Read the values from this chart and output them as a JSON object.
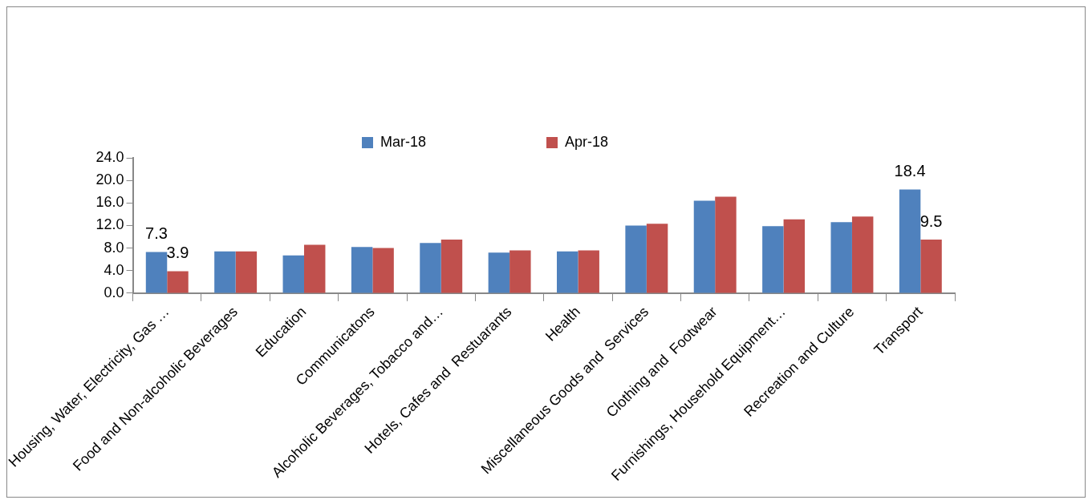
{
  "chart_data": {
    "type": "bar",
    "categories": [
      "Housing, Water, Electricity, Gas …",
      "Food and Non-alcoholic Beverages",
      "Education",
      "Communicatons",
      "Alcoholic Beverages, Tobacco and…",
      "Hotels, Cafes and  Restuarants",
      "Health",
      "Miscellaneous Goods and  Services",
      "Clothing and  Footwear",
      "Furnishings, Household Equipment…",
      "Recreation and Culture",
      "Transport"
    ],
    "series": [
      {
        "name": "Mar-18",
        "color": "#4f81bd",
        "values": [
          7.3,
          7.4,
          6.7,
          8.2,
          8.9,
          7.2,
          7.4,
          12.0,
          16.4,
          11.9,
          12.6,
          18.4
        ],
        "value_labels": [
          "7.3",
          null,
          null,
          null,
          null,
          null,
          null,
          null,
          null,
          null,
          null,
          "18.4"
        ]
      },
      {
        "name": "Apr-18",
        "color": "#c0504d",
        "values": [
          3.9,
          7.4,
          8.6,
          8.0,
          9.5,
          7.6,
          7.6,
          12.3,
          17.1,
          13.1,
          13.6,
          9.5
        ],
        "value_labels": [
          "3.9",
          null,
          null,
          null,
          null,
          null,
          null,
          null,
          null,
          null,
          null,
          "9.5"
        ]
      }
    ],
    "ylim": [
      0,
      24
    ],
    "yticks": [
      {
        "value": 0,
        "label": "0.0"
      },
      {
        "value": 4,
        "label": "4.0"
      },
      {
        "value": 8,
        "label": "8.0"
      },
      {
        "value": 12,
        "label": "12.0"
      },
      {
        "value": 16,
        "label": "16.0"
      },
      {
        "value": 20,
        "label": "20.0"
      },
      {
        "value": 24,
        "label": "24.0"
      }
    ],
    "grid": false,
    "legend": "top"
  }
}
